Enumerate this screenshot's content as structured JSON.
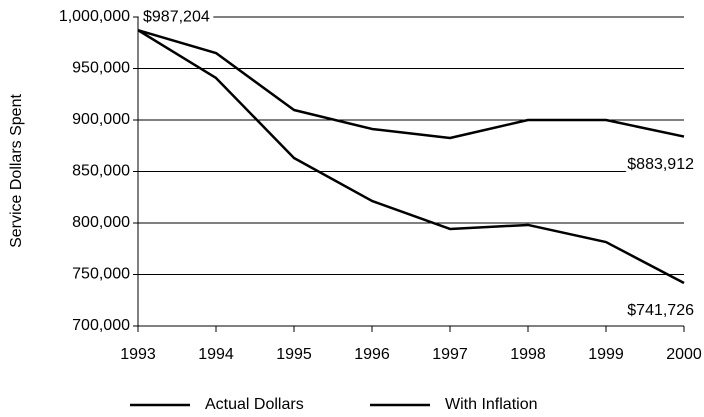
{
  "chart_data": {
    "type": "line",
    "y_label": "Service Dollars Spent",
    "x": [
      1993,
      1994,
      1995,
      1996,
      1997,
      1998,
      1999,
      2000
    ],
    "xlim": [
      1993,
      2000
    ],
    "xticks": [
      1993,
      1994,
      1995,
      1996,
      1997,
      1998,
      1999,
      2000
    ],
    "ylim": [
      700000,
      1000000
    ],
    "yticks": [
      {
        "value": 700000,
        "label": "700,000"
      },
      {
        "value": 750000,
        "label": "750,000"
      },
      {
        "value": 800000,
        "label": "800,000"
      },
      {
        "value": 850000,
        "label": "850,000"
      },
      {
        "value": 900000,
        "label": "900,000"
      },
      {
        "value": 950000,
        "label": "950,000"
      },
      {
        "value": 1000000,
        "label": "1,000,000"
      }
    ],
    "grid": true,
    "legend": "bottom",
    "series": [
      {
        "name": "Actual Dollars",
        "color": "#000000",
        "values": [
          987204,
          965000,
          909700,
          891300,
          882500,
          900000,
          900000,
          883912
        ],
        "value_labels": [
          "$987,204",
          null,
          null,
          null,
          null,
          null,
          null,
          "$883,912"
        ]
      },
      {
        "name": "With Inflation",
        "color": "#000000",
        "values": [
          987204,
          940800,
          863100,
          821400,
          794200,
          798100,
          781500,
          741726
        ],
        "value_labels": [
          null,
          null,
          null,
          null,
          null,
          null,
          null,
          "$741,726"
        ]
      }
    ]
  }
}
